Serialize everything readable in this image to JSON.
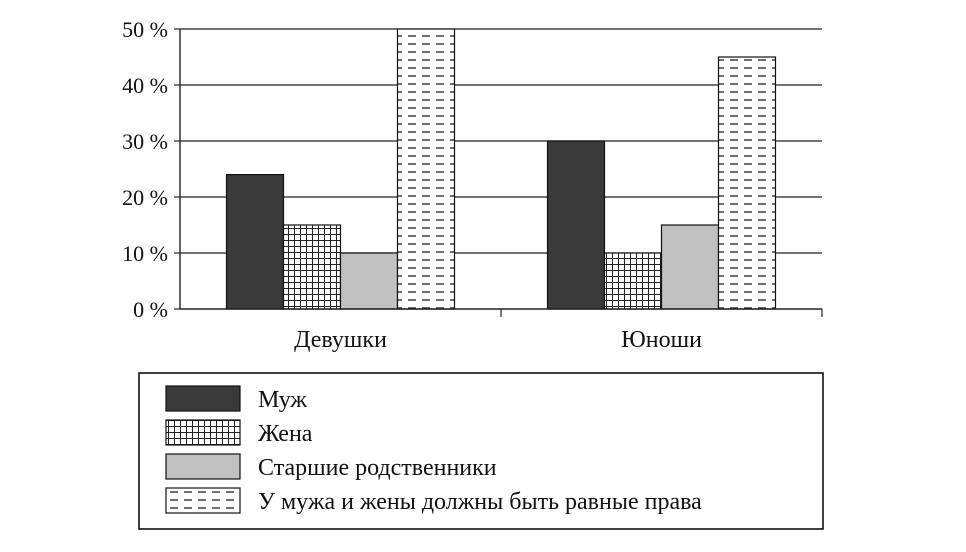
{
  "chart_data": {
    "type": "bar",
    "categories": [
      "Девушки",
      "Юноши"
    ],
    "series": [
      {
        "name": "Муж",
        "values": [
          24,
          30
        ],
        "color": "#3a3a3a",
        "pattern": "solid-dark"
      },
      {
        "name": "Жена",
        "values": [
          15,
          10
        ],
        "color": "#ffffff",
        "pattern": "grid"
      },
      {
        "name": "Старшие родственники",
        "values": [
          10,
          15
        ],
        "color": "#c0c0c0",
        "pattern": "solid-light"
      },
      {
        "name": "У мужа и жены должны быть равные права",
        "values": [
          50,
          45
        ],
        "color": "#ffffff",
        "pattern": "dashes"
      }
    ],
    "y_ticks": [
      "0 %",
      "10 %",
      "20 %",
      "30 %",
      "40 %",
      "50 %"
    ],
    "ylim": [
      0,
      50
    ],
    "grid": true,
    "legend_position": "bottom"
  }
}
